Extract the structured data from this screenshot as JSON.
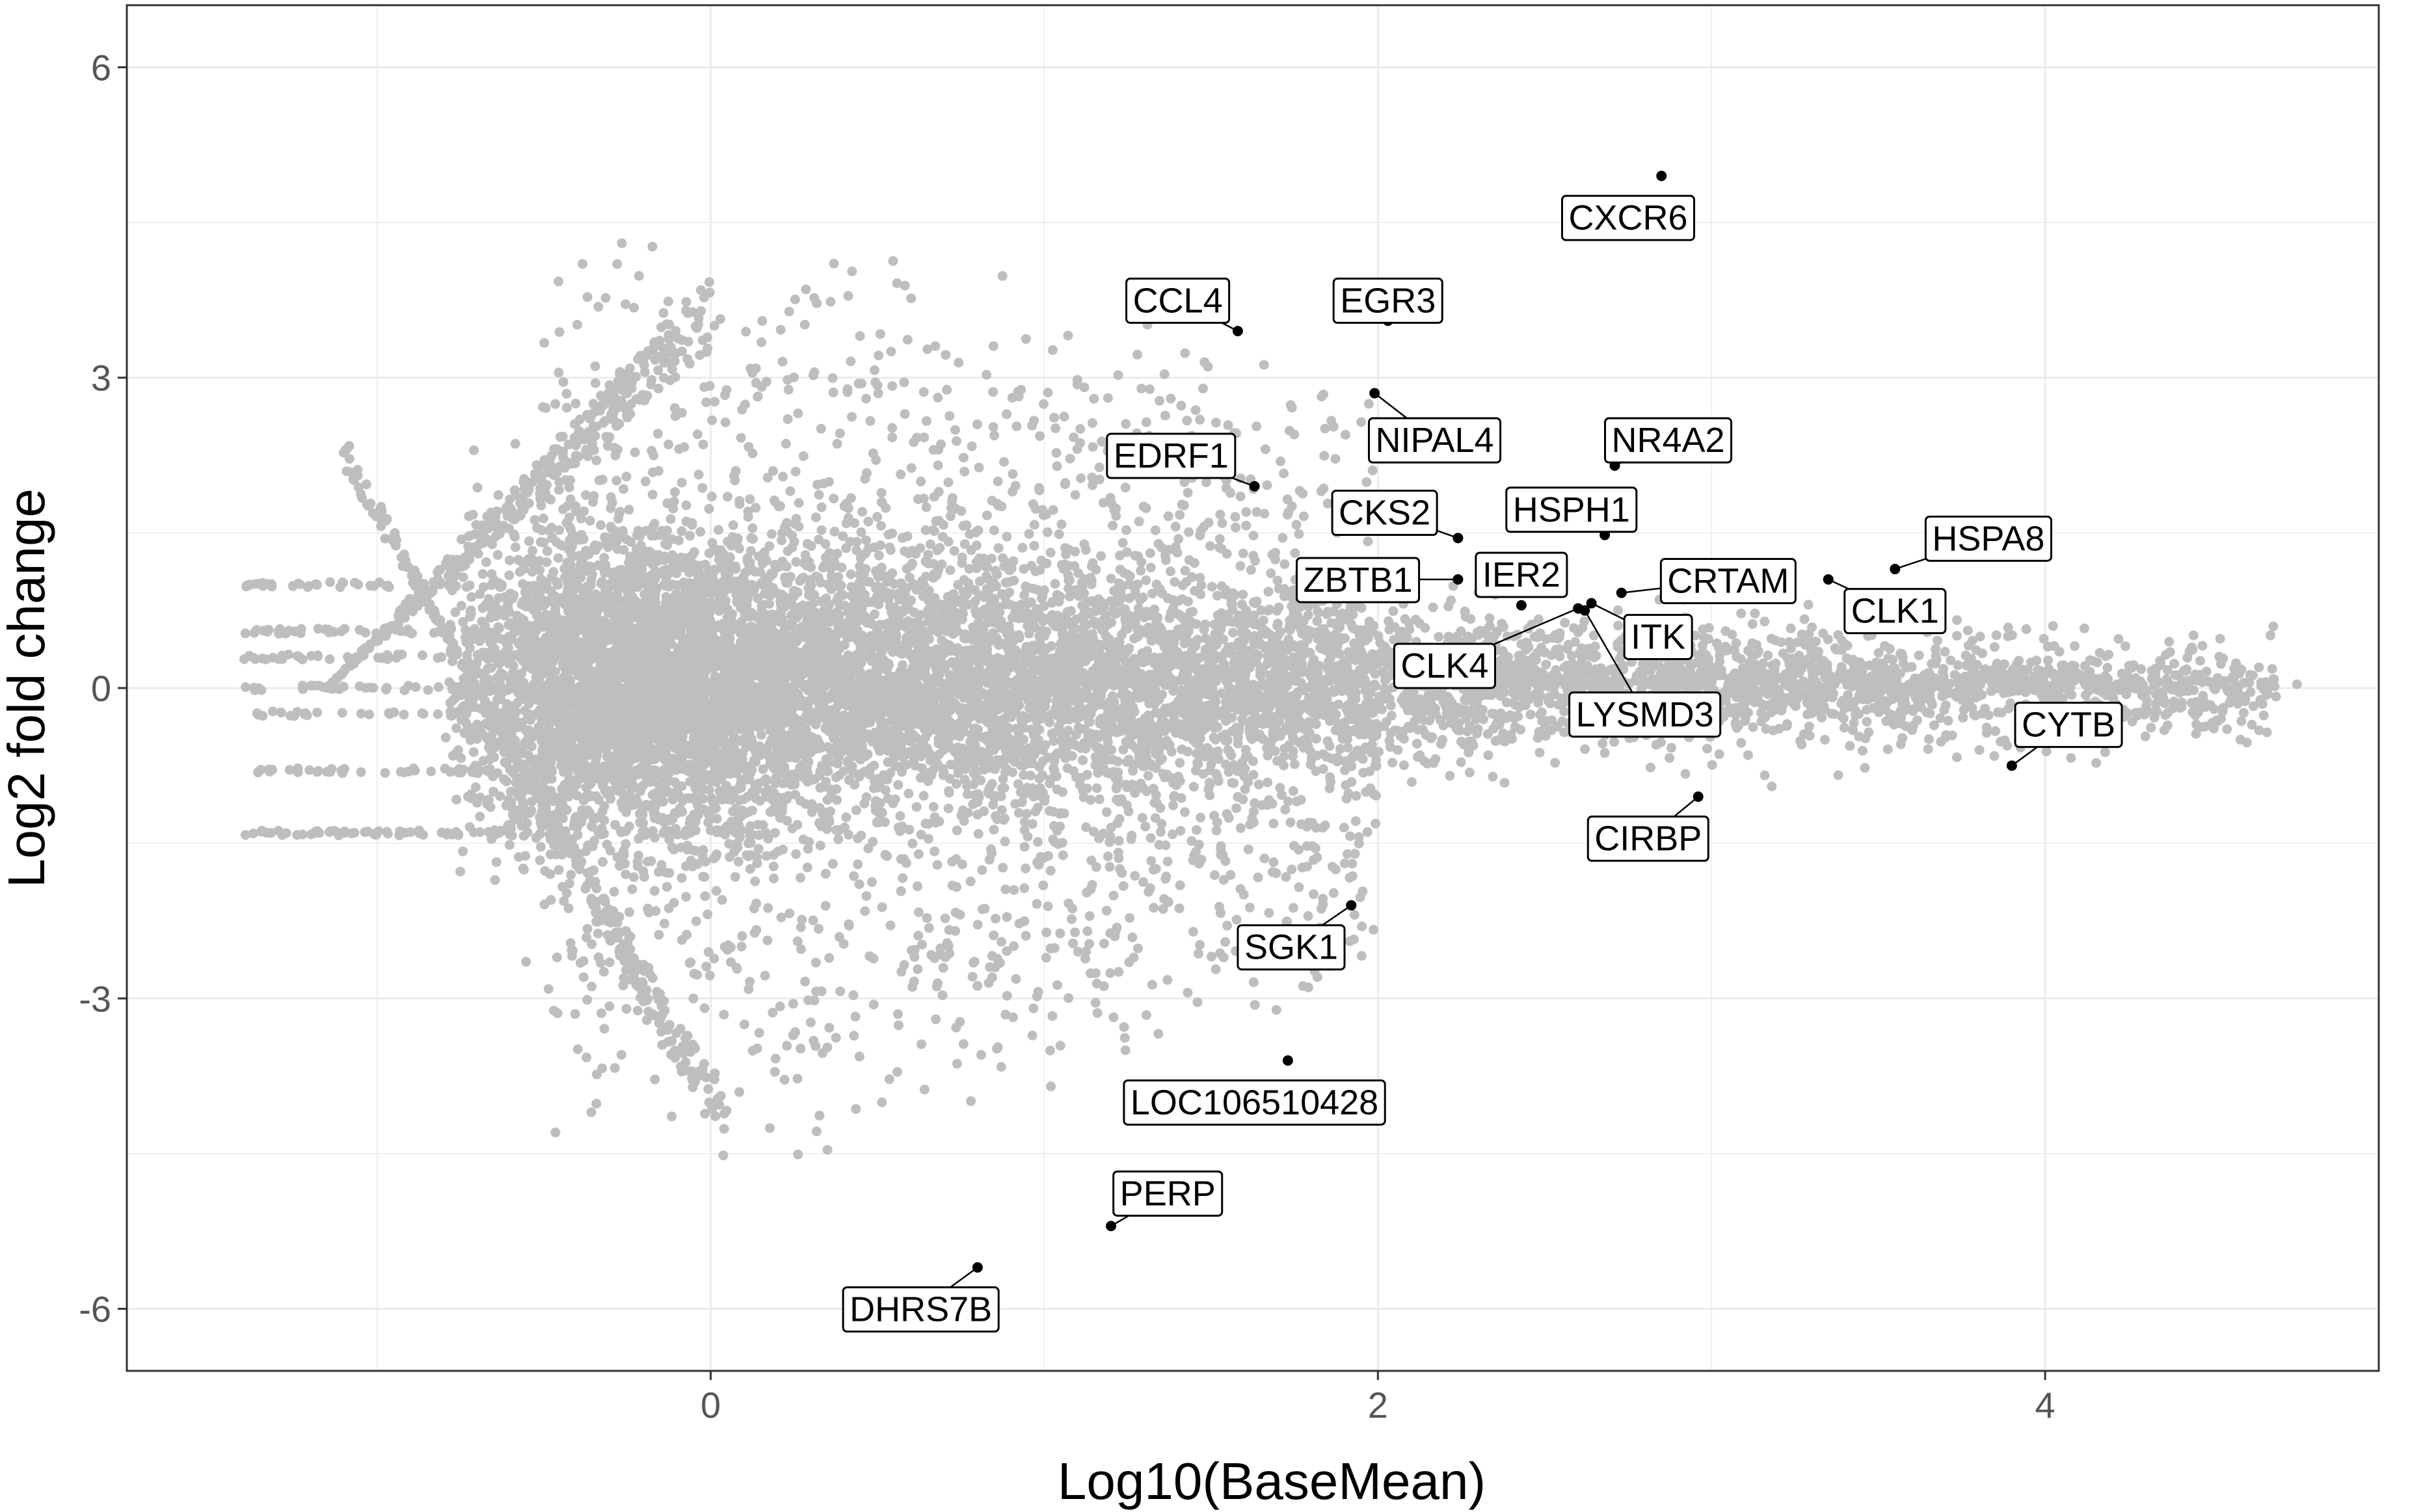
{
  "chart_data": {
    "type": "scatter",
    "title": "",
    "xlabel": "Log10(BaseMean)",
    "ylabel": "Log2 fold change",
    "xlim": [
      -1.75,
      5.0
    ],
    "ylim": [
      -6.6,
      6.6
    ],
    "x_ticks": [
      0,
      2,
      4
    ],
    "y_ticks": [
      6,
      3,
      0,
      -3,
      -6
    ],
    "x_tick_labels": [
      "0",
      "2",
      "4"
    ],
    "y_tick_labels": [
      "6",
      "3",
      "0",
      "-3",
      "-6"
    ],
    "grid": true,
    "legend": "none",
    "background_points_color": "#bebebe",
    "highlight_color": "#000000",
    "highlighted_genes": [
      {
        "gene": "CXCR6",
        "x": 2.85,
        "y": 4.95
      },
      {
        "gene": "CCL4",
        "x": 1.58,
        "y": 3.45
      },
      {
        "gene": "EGR3",
        "x": 2.03,
        "y": 3.55
      },
      {
        "gene": "NIPAL4",
        "x": 1.99,
        "y": 2.85
      },
      {
        "gene": "NR4A2",
        "x": 2.71,
        "y": 2.15
      },
      {
        "gene": "EDRF1",
        "x": 1.63,
        "y": 1.95
      },
      {
        "gene": "HSPH1",
        "x": 2.68,
        "y": 1.48
      },
      {
        "gene": "CKS2",
        "x": 2.24,
        "y": 1.45
      },
      {
        "gene": "HSPA8",
        "x": 3.55,
        "y": 1.15
      },
      {
        "gene": "IER2",
        "x": 2.43,
        "y": 0.8
      },
      {
        "gene": "CRTAM",
        "x": 2.73,
        "y": 0.92
      },
      {
        "gene": "ZBTB1",
        "x": 2.24,
        "y": 1.05
      },
      {
        "gene": "CLK1",
        "x": 3.35,
        "y": 1.05
      },
      {
        "gene": "ITK",
        "x": 2.64,
        "y": 0.82
      },
      {
        "gene": "CLK4",
        "x": 2.6,
        "y": 0.77
      },
      {
        "gene": "LYSMD3",
        "x": 2.62,
        "y": 0.75
      },
      {
        "gene": "CYTB",
        "x": 3.9,
        "y": -0.75
      },
      {
        "gene": "CIRBP",
        "x": 2.96,
        "y": -1.05
      },
      {
        "gene": "SGK1",
        "x": 1.92,
        "y": -2.1
      },
      {
        "gene": "LOC106510428",
        "x": 1.73,
        "y": -3.6
      },
      {
        "gene": "PERP",
        "x": 1.2,
        "y": -5.2
      },
      {
        "gene": "DHRS7B",
        "x": 0.8,
        "y": -5.6
      }
    ]
  }
}
